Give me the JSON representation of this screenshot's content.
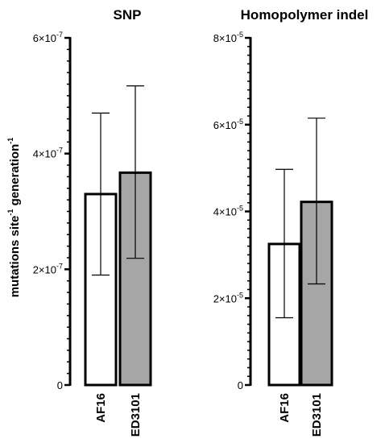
{
  "figure": {
    "ylabel_main": "mutations site",
    "ylabel_sup1": "-1",
    "ylabel_mid": " generation",
    "ylabel_sup2": "-1"
  },
  "chart_data": [
    {
      "type": "bar",
      "title": "SNP",
      "categories": [
        "AF16",
        "ED3101"
      ],
      "values": [
        3.3e-07,
        3.67e-07
      ],
      "error_low": [
        1.9e-07,
        2.19e-07
      ],
      "error_high": [
        4.7e-07,
        5.17e-07
      ],
      "bar_colors": [
        "#ffffff",
        "#a6a6a6"
      ],
      "ylim": [
        0,
        6e-07
      ],
      "ticks": [
        {
          "value": 0,
          "base": "0",
          "exp": ""
        },
        {
          "value": 2e-07,
          "base": "2×10",
          "exp": "-7"
        },
        {
          "value": 4e-07,
          "base": "4×10",
          "exp": "-7"
        },
        {
          "value": 6e-07,
          "base": "6×10",
          "exp": "-7"
        }
      ]
    },
    {
      "type": "bar",
      "title": "Homopolymer indel",
      "categories": [
        "AF16",
        "ED3101"
      ],
      "values": [
        3.25e-05,
        4.22e-05
      ],
      "error_low": [
        1.55e-05,
        2.33e-05
      ],
      "error_high": [
        4.97e-05,
        6.15e-05
      ],
      "bar_colors": [
        "#ffffff",
        "#a6a6a6"
      ],
      "ylim": [
        0,
        8e-05
      ],
      "ticks": [
        {
          "value": 0,
          "base": "0",
          "exp": ""
        },
        {
          "value": 2e-05,
          "base": "2×10",
          "exp": "-5"
        },
        {
          "value": 4e-05,
          "base": "4×10",
          "exp": "-5"
        },
        {
          "value": 6e-05,
          "base": "6×10",
          "exp": "-5"
        },
        {
          "value": 8e-05,
          "base": "8×10",
          "exp": "-5"
        }
      ]
    }
  ]
}
